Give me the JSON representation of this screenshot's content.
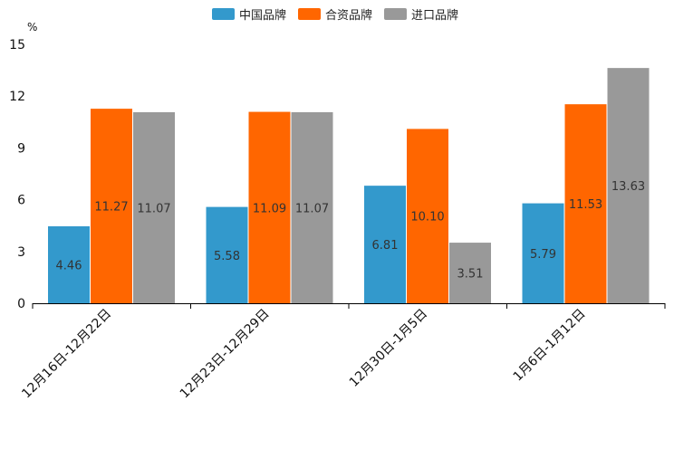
{
  "chart_data": {
    "type": "bar",
    "title": "",
    "xlabel": "",
    "ylabel": "%",
    "ylim": [
      0,
      15
    ],
    "yticks": [
      0,
      3,
      6,
      9,
      12,
      15
    ],
    "legend_position": "top-center",
    "categories": [
      "12月16日-12月22日",
      "12月23日-12月29日",
      "12月30日-1月5日",
      "1月6日-1月12日"
    ],
    "series": [
      {
        "name": "中国品牌",
        "color": "#3399CC",
        "values": [
          4.46,
          5.58,
          6.81,
          5.79
        ],
        "labels": [
          "4.46",
          "5.58",
          "6.81",
          "5.79"
        ]
      },
      {
        "name": "合资品牌",
        "color": "#FF6600",
        "values": [
          11.27,
          11.09,
          10.1,
          11.53
        ],
        "labels": [
          "11.27",
          "11.09",
          "10.10",
          "11.53"
        ]
      },
      {
        "name": "进口品牌",
        "color": "#999999",
        "values": [
          11.07,
          11.07,
          3.51,
          13.63
        ],
        "labels": [
          "11.07",
          "11.07",
          "3.51",
          "13.63"
        ]
      }
    ]
  }
}
